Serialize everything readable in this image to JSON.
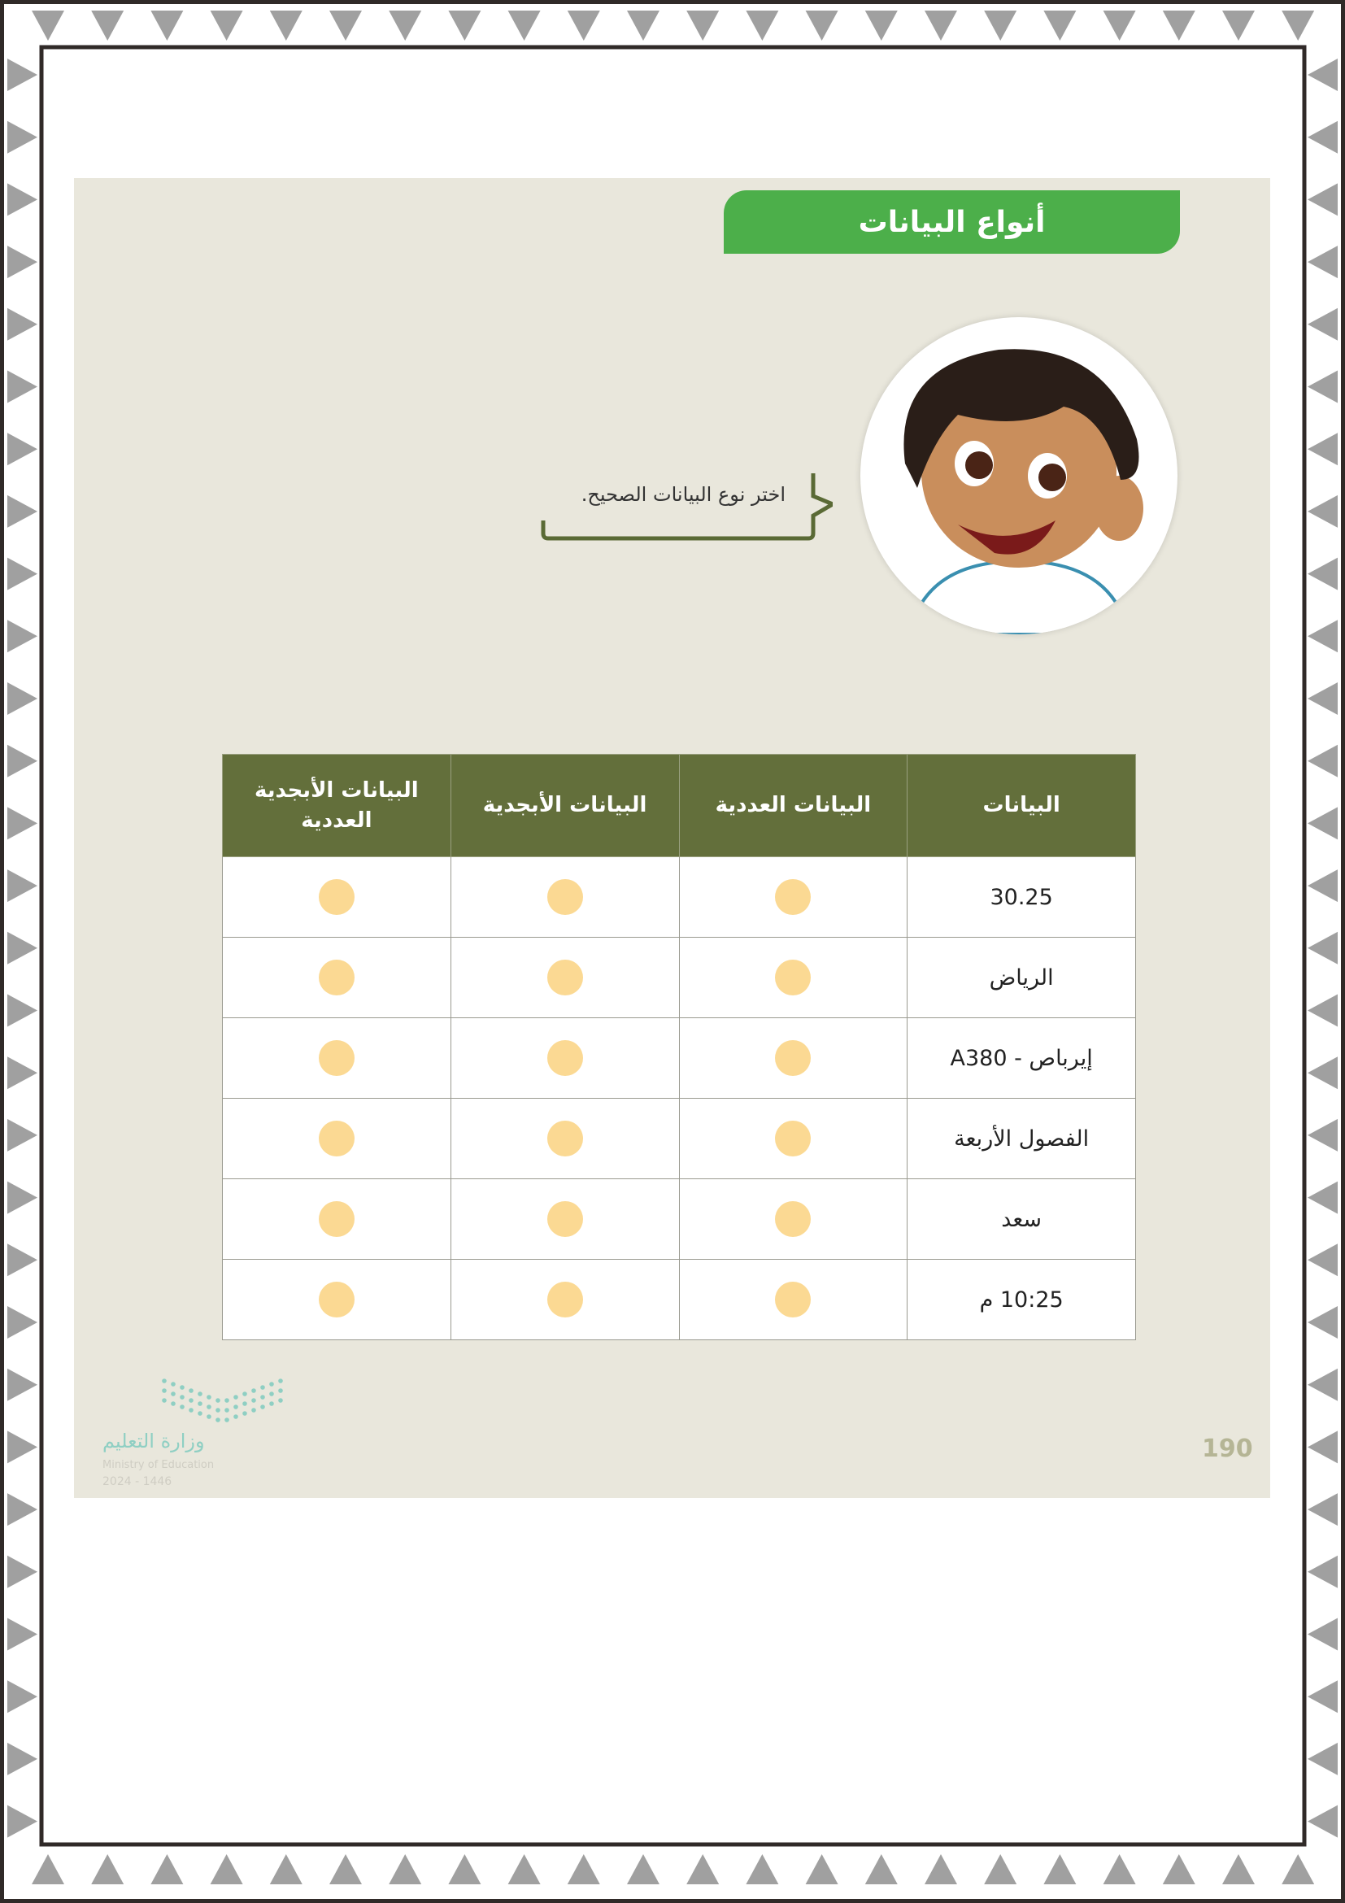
{
  "page": {
    "title": "أنواع البيانات",
    "speech_bubble": "اختر نوع البيانات الصحيح.",
    "page_number": "190"
  },
  "table": {
    "headers": [
      "البيانات",
      "البيانات العددية",
      "البيانات الأبجدية",
      "البيانات الأبجدية العددية"
    ],
    "rows": [
      {
        "value": "30.25"
      },
      {
        "value": "الرياض"
      },
      {
        "value": "إيرباص - A380"
      },
      {
        "value": "الفصول الأربعة"
      },
      {
        "value": "سعد"
      },
      {
        "value": "10:25 م"
      }
    ],
    "option_color": "#fbd993",
    "header_color": "#636f3b"
  },
  "footer": {
    "logo_ar": "وزارة التعليم",
    "logo_en": "Ministry of Education",
    "logo_year": "2024 - 1446"
  },
  "colors": {
    "title_bg": "#4caf4a",
    "panel_bg": "#e9e7dc",
    "frame_triangles": "#a0a0a0"
  }
}
